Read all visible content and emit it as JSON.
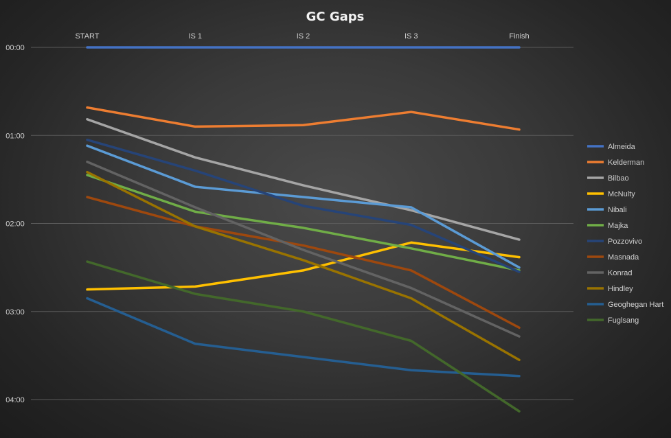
{
  "chart_data": {
    "type": "line",
    "title": "GC Gaps",
    "xlabel": "",
    "ylabel": "",
    "categories": [
      "START",
      "IS 1",
      "IS 2",
      "IS 3",
      "Finish"
    ],
    "y_tick_labels": [
      "00:00",
      "01:00",
      "02:00",
      "03:00",
      "04:00"
    ],
    "y_unit": "seconds",
    "y_inverted": true,
    "ylim": [
      0,
      240
    ],
    "grid": true,
    "legend_position": "right",
    "series": [
      {
        "name": "Almeida",
        "color": "#4472C4",
        "values": [
          0,
          0,
          0,
          0,
          0
        ]
      },
      {
        "name": "Kelderman",
        "color": "#ED7D31",
        "values": [
          41,
          54,
          53,
          44,
          56
        ]
      },
      {
        "name": "Bilbao",
        "color": "#A5A5A5",
        "values": [
          49,
          75,
          94,
          111,
          131
        ]
      },
      {
        "name": "McNulty",
        "color": "#FFC000",
        "values": [
          165,
          163,
          152,
          133,
          143
        ]
      },
      {
        "name": "Nibali",
        "color": "#5B9BD5",
        "values": [
          67,
          95,
          102,
          109,
          150
        ]
      },
      {
        "name": "Majka",
        "color": "#70AD47",
        "values": [
          87,
          112,
          123,
          137,
          152
        ]
      },
      {
        "name": "Pozzovivo",
        "color": "#264478",
        "values": [
          63,
          84,
          108,
          121,
          153
        ]
      },
      {
        "name": "Masnada",
        "color": "#9E480E",
        "values": [
          102,
          122,
          135,
          152,
          191
        ]
      },
      {
        "name": "Konrad",
        "color": "#636363",
        "values": [
          78,
          109,
          138,
          164,
          197
        ]
      },
      {
        "name": "Hindley",
        "color": "#997300",
        "values": [
          85,
          122,
          145,
          171,
          213
        ]
      },
      {
        "name": "Geoghegan Hart",
        "color": "#255E91",
        "values": [
          171,
          202,
          211,
          220,
          224
        ]
      },
      {
        "name": "Fuglsang",
        "color": "#43682B",
        "values": [
          146,
          168,
          180,
          200,
          248
        ]
      }
    ]
  }
}
